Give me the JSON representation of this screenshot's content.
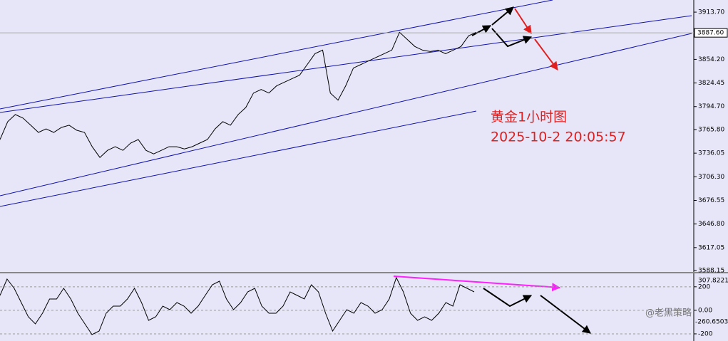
{
  "chart_data": [
    {
      "type": "line",
      "title": "黄金1小时图",
      "subtitle": "2025-10-2 20:05:57",
      "price_label": {
        "value": 3887.6,
        "label": "3887.60"
      },
      "ylim": [
        3586.4,
        3929.0
      ],
      "yticks": [
        {
          "value": 3913.7,
          "label": "3913.70"
        },
        {
          "value": 3854.2,
          "label": "3854.20"
        },
        3824.45,
        {
          "value": 3794.7,
          "label": "3794.70"
        },
        {
          "value": 3765.8,
          "label": "3765.80"
        },
        3736.05,
        {
          "value": 3706.3,
          "label": "3706.30"
        },
        3676.55,
        {
          "value": 3646.8,
          "label": "3646.80"
        },
        3617.05,
        3588.15
      ],
      "grid": false,
      "series": [
        {
          "color": "#000000",
          "values": [
            3753.2,
            3775.7,
            3784.7,
            3780.2,
            3771.2,
            3762.2,
            3766.7,
            3762.2,
            3768.5,
            3771.2,
            3764.9,
            3762.2,
            3744.2,
            3730.6,
            3739.6,
            3744.2,
            3739.6,
            3748.7,
            3753.2,
            3739.6,
            3735.1,
            3739.6,
            3744.2,
            3744.2,
            3741.4,
            3744.2,
            3748.7,
            3753.2,
            3766.7,
            3775.7,
            3771.2,
            3784.7,
            3793.7,
            3811.8,
            3816.3,
            3811.8,
            3820.8,
            3825.3,
            3829.8,
            3834.3,
            3847.8,
            3861.4,
            3865.9,
            3811.8,
            3802.8,
            3820.8,
            3843.3,
            3847.8,
            3852.4,
            3856.9,
            3861.4,
            3865.9,
            3888.4,
            3879.4,
            3870.4,
            3865.9,
            3864.1,
            3865.9,
            3861.4,
            3865.9,
            3870.4,
            3883.9,
            3888.4
          ]
        }
      ]
    },
    {
      "type": "line",
      "ylim": [
        -260.6503,
        307.8221
      ],
      "yticks": [
        200,
        {
          "value": 0,
          "label": "0.00"
        },
        -200
      ],
      "grid": true,
      "series": [
        {
          "color": "#000000",
          "values": [
            126.4,
            265.5,
            186.9,
            65.9,
            -55.0,
            -115.5,
            -24.8,
            96.2,
            96.2,
            186.9,
            96.2,
            -24.8,
            -115.5,
            -206.2,
            -176.0,
            -24.8,
            35.7,
            35.7,
            96.2,
            186.9,
            65.9,
            -85.3,
            -55.0,
            35.7,
            5.4,
            65.9,
            35.7,
            -24.8,
            35.7,
            126.4,
            217.1,
            247.3,
            96.2,
            5.4,
            65.9,
            156.6,
            186.9,
            35.7,
            -24.8,
            -24.8,
            35.7,
            156.6,
            126.4,
            96.2,
            217.1,
            156.6,
            -24.8,
            -176.0,
            -85.3,
            5.4,
            -24.8,
            65.9,
            35.7,
            -24.8,
            5.4,
            96.2,
            277.6,
            156.6,
            -24.8,
            -85.3,
            -55.0,
            -85.3,
            -24.8,
            65.9,
            35.7,
            217.1,
            186.9,
            156.6
          ]
        }
      ]
    }
  ],
  "watermark": "@老黑策略"
}
